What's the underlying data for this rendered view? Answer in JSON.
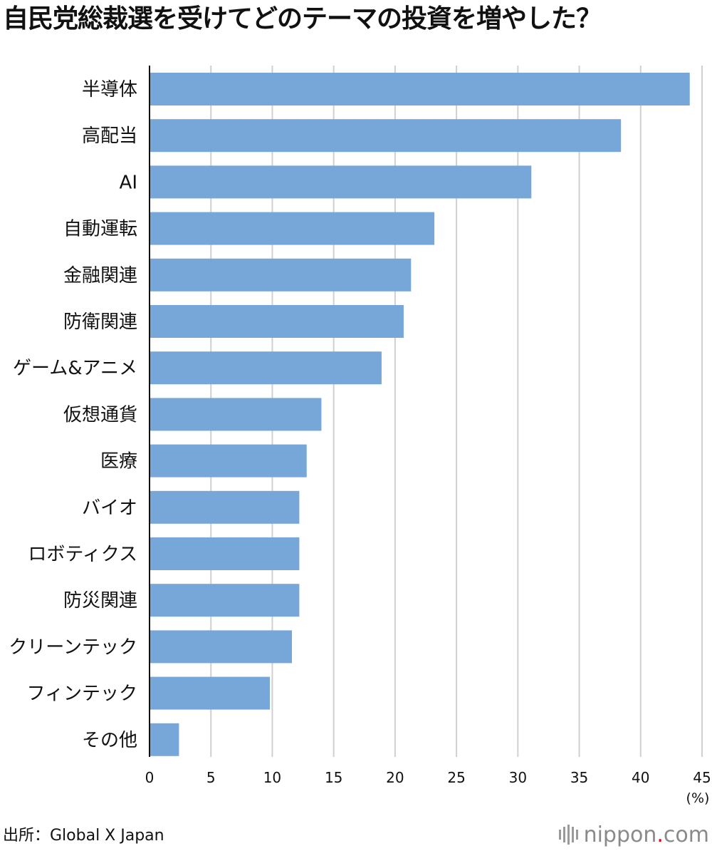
{
  "title": "自民党総裁選を受けてどのテーマの投資を増やした？",
  "source": "出所：Global X Japan",
  "brand": {
    "name_part1": "nippon",
    "dot": ".",
    "name_part2": "com",
    "dot_color": "#e60012"
  },
  "chart_data": {
    "type": "bar",
    "orientation": "horizontal",
    "categories": [
      "半導体",
      "高配当",
      "AI",
      "自動運転",
      "金融関連",
      "防衛関連",
      "ゲーム&アニメ",
      "仮想通貨",
      "医療",
      "バイオ",
      "ロボティクス",
      "防災関連",
      "クリーンテック",
      "フィンテック",
      "その他"
    ],
    "values": [
      44.0,
      38.4,
      31.1,
      23.2,
      21.3,
      20.7,
      18.9,
      14.0,
      12.8,
      12.2,
      12.2,
      12.2,
      11.6,
      9.8,
      2.4
    ],
    "xlim": [
      0,
      45
    ],
    "xticks": [
      "0",
      "5",
      "10",
      "15",
      "20",
      "25",
      "30",
      "35",
      "40",
      "45"
    ],
    "xunit": "(%)",
    "bar_color": "#77a7d8",
    "grid_color": "#d0d0d0",
    "grid": true
  }
}
